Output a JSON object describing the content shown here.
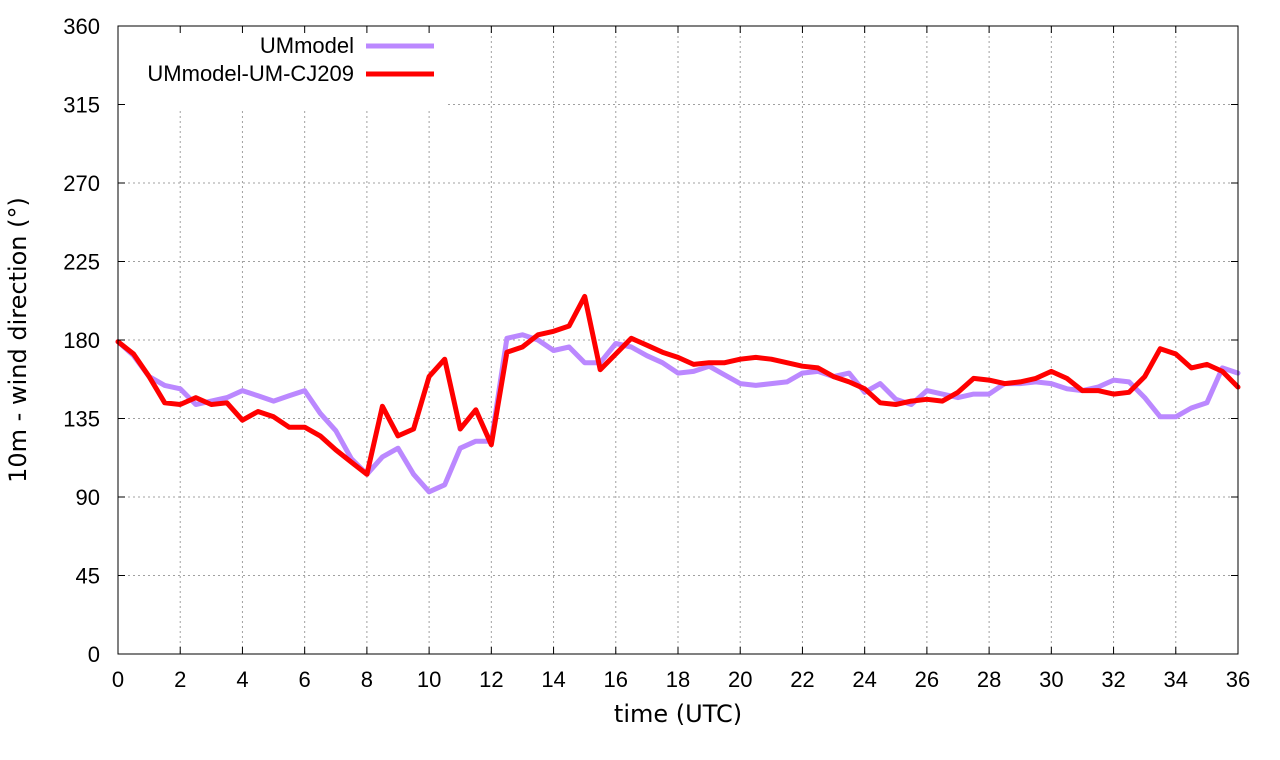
{
  "chart_data": {
    "type": "line",
    "title": "",
    "xlabel": "time (UTC)",
    "ylabel": "10m - wind direction (°)",
    "xlim": [
      0,
      36
    ],
    "ylim": [
      0,
      360
    ],
    "xticks": [
      "0",
      "2",
      "4",
      "6",
      "8",
      "10",
      "12",
      "14",
      "16",
      "18",
      "20",
      "22",
      "24",
      "26",
      "28",
      "30",
      "32",
      "34",
      "36"
    ],
    "yticks": [
      "0",
      "45",
      "90",
      "135",
      "180",
      "225",
      "270",
      "315",
      "360"
    ],
    "grid": true,
    "legend_position": "top-left",
    "series": [
      {
        "name": "UMmodel",
        "color": "#bb88ff",
        "x": [
          0,
          0.5,
          1,
          1.5,
          2,
          2.5,
          3,
          3.5,
          4,
          4.5,
          5,
          5.5,
          6,
          6.5,
          7,
          7.5,
          8,
          8.5,
          9,
          9.5,
          10,
          10.5,
          11,
          11.5,
          12,
          12.5,
          13,
          13.5,
          14,
          14.5,
          15,
          15.5,
          16,
          16.5,
          17,
          17.5,
          18,
          18.5,
          19,
          19.5,
          20,
          20.5,
          21,
          21.5,
          22,
          22.5,
          23,
          23.5,
          24,
          24.5,
          25,
          25.5,
          26,
          26.5,
          27,
          27.5,
          28,
          28.5,
          29,
          29.5,
          30,
          30.5,
          31,
          31.5,
          32,
          32.5,
          33,
          33.5,
          34,
          34.5,
          35,
          35.5,
          36
        ],
        "values": [
          179,
          171,
          159,
          154,
          152,
          143,
          145,
          147,
          151,
          148,
          145,
          148,
          151,
          138,
          128,
          112,
          103,
          113,
          118,
          103,
          93,
          97,
          118,
          122,
          122,
          181,
          183,
          180,
          174,
          176,
          167,
          167,
          178,
          176,
          171,
          167,
          161,
          162,
          165,
          160,
          155,
          154,
          155,
          156,
          161,
          162,
          159,
          161,
          150,
          155,
          146,
          143,
          151,
          149,
          147,
          149,
          149,
          155,
          155,
          156,
          155,
          152,
          151,
          153,
          157,
          156,
          147,
          136,
          136,
          141,
          144,
          164,
          161
        ]
      },
      {
        "name": "UMmodel-UM-CJ209",
        "color": "#ff0000",
        "x": [
          0,
          0.5,
          1,
          1.5,
          2,
          2.5,
          3,
          3.5,
          4,
          4.5,
          5,
          5.5,
          6,
          6.5,
          7,
          7.5,
          8,
          8.5,
          9,
          9.5,
          10,
          10.5,
          11,
          11.5,
          12,
          12.5,
          13,
          13.5,
          14,
          14.5,
          15,
          15.5,
          16,
          16.5,
          17,
          17.5,
          18,
          18.5,
          19,
          19.5,
          20,
          20.5,
          21,
          21.5,
          22,
          22.5,
          23,
          23.5,
          24,
          24.5,
          25,
          25.5,
          26,
          26.5,
          27,
          27.5,
          28,
          28.5,
          29,
          29.5,
          30,
          30.5,
          31,
          31.5,
          32,
          32.5,
          33,
          33.5,
          34,
          34.5,
          35,
          35.5,
          36
        ],
        "values": [
          179,
          172,
          159,
          144,
          143,
          147,
          143,
          144,
          134,
          139,
          136,
          130,
          130,
          125,
          117,
          110,
          103,
          142,
          125,
          129,
          159,
          169,
          129,
          140,
          120,
          173,
          176,
          183,
          185,
          188,
          205,
          163,
          172,
          181,
          177,
          173,
          170,
          166,
          167,
          167,
          169,
          170,
          169,
          167,
          165,
          164,
          159,
          156,
          152,
          144,
          143,
          145,
          146,
          145,
          150,
          158,
          157,
          155,
          156,
          158,
          162,
          158,
          151,
          151,
          149,
          150,
          159,
          175,
          172,
          164,
          166,
          162,
          153
        ]
      }
    ]
  }
}
